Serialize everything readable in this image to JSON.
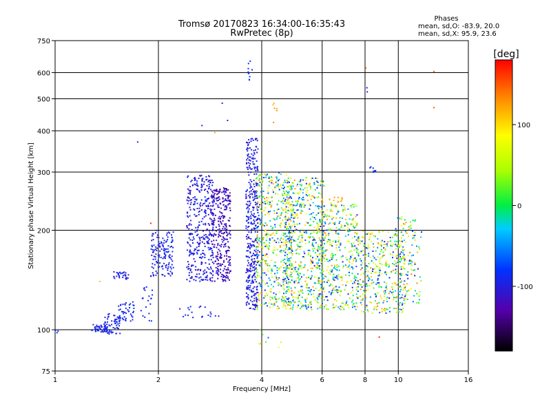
{
  "chart_data": {
    "type": "scatter",
    "title": "Tromsø 20170823 16:34:00-16:35:43",
    "subtitle": "RwPretec (8p)",
    "xlabel": "Frequency [MHz]",
    "ylabel": "Stationary phase Virtual Height [km]",
    "x_scale": "log",
    "y_scale": "log",
    "xlim": [
      1,
      16
    ],
    "ylim": [
      75,
      750
    ],
    "x_ticks": [
      1,
      2,
      4,
      6,
      8,
      10,
      16
    ],
    "x_tick_labels": [
      "1",
      "2",
      "4",
      "6",
      "8",
      "10",
      "16"
    ],
    "y_ticks": [
      75,
      100,
      200,
      300,
      400,
      500,
      600,
      750
    ],
    "y_tick_labels": [
      "75",
      "100",
      "200",
      "300",
      "400",
      "500",
      "600",
      "750"
    ],
    "grid": true,
    "phase_box": {
      "title": "Phases",
      "line_o": "mean, sd,O: -83.9, 20.0",
      "line_x": "mean, sd,X:  95.9, 23.6"
    },
    "colorbar": {
      "label": "[deg]",
      "range": [
        -180,
        180
      ],
      "ticks": [
        100,
        0,
        -100
      ],
      "tick_labels": [
        "100",
        "0",
        "-100"
      ]
    },
    "point_clusters": [
      {
        "name": "c1",
        "f": [
          1.0,
          1.02
        ],
        "h": [
          97,
          100
        ],
        "phase": [
          -100,
          -80
        ],
        "n": 3
      },
      {
        "name": "c2",
        "f": [
          1.28,
          1.42
        ],
        "h": [
          98,
          104
        ],
        "phase": [
          -110,
          -80
        ],
        "n": 45
      },
      {
        "name": "c3",
        "f": [
          1.38,
          1.55
        ],
        "h": [
          97,
          112
        ],
        "phase": [
          -110,
          -80
        ],
        "n": 60
      },
      {
        "name": "c4",
        "f": [
          1.53,
          1.7
        ],
        "h": [
          106,
          122
        ],
        "phase": [
          -100,
          -80
        ],
        "n": 45
      },
      {
        "name": "c5",
        "f": [
          1.48,
          1.64
        ],
        "h": [
          142,
          150
        ],
        "phase": [
          -110,
          -85
        ],
        "n": 30
      },
      {
        "name": "c6",
        "f": [
          1.78,
          1.92
        ],
        "h": [
          106,
          135
        ],
        "phase": [
          -100,
          -80
        ],
        "n": 20
      },
      {
        "name": "c7",
        "f": [
          1.9,
          2.22
        ],
        "h": [
          145,
          200
        ],
        "phase": [
          -110,
          -80
        ],
        "n": 140
      },
      {
        "name": "c8",
        "f": [
          2.42,
          2.9
        ],
        "h": [
          140,
          295
        ],
        "phase": [
          -120,
          -80
        ],
        "n": 360
      },
      {
        "name": "c9",
        "f": [
          2.85,
          3.25
        ],
        "h": [
          140,
          270
        ],
        "phase": [
          -140,
          -95
        ],
        "n": 320
      },
      {
        "name": "c10",
        "f": [
          2.3,
          3.0
        ],
        "h": [
          108,
          118
        ],
        "phase": [
          -110,
          -80
        ],
        "n": 20
      },
      {
        "name": "c11",
        "f": [
          3.6,
          3.9
        ],
        "h": [
          115,
          380
        ],
        "phase": [
          -120,
          -80
        ],
        "n": 380
      },
      {
        "name": "c12",
        "f": [
          3.85,
          4.9
        ],
        "h": [
          115,
          300
        ],
        "phase": [
          -110,
          140
        ],
        "n": 500
      },
      {
        "name": "c13",
        "f": [
          4.6,
          6.1
        ],
        "h": [
          115,
          290
        ],
        "phase": [
          -110,
          130
        ],
        "n": 600
      },
      {
        "name": "c14",
        "f": [
          5.8,
          7.6
        ],
        "h": [
          115,
          240
        ],
        "phase": [
          -100,
          130
        ],
        "n": 420
      },
      {
        "name": "c15",
        "f": [
          7.6,
          10.5
        ],
        "h": [
          112,
          200
        ],
        "phase": [
          -110,
          140
        ],
        "n": 360
      },
      {
        "name": "c16",
        "f": [
          9.8,
          11.7
        ],
        "h": [
          120,
          220
        ],
        "phase": [
          -110,
          140
        ],
        "n": 140
      },
      {
        "name": "c17",
        "f": [
          8.2,
          8.6
        ],
        "h": [
          300,
          315
        ],
        "phase": [
          -100,
          -80
        ],
        "n": 8
      },
      {
        "name": "c18",
        "f": [
          6.3,
          6.9
        ],
        "h": [
          235,
          252
        ],
        "phase": [
          100,
          130
        ],
        "n": 15
      },
      {
        "name": "c19",
        "f": [
          3.65,
          3.75
        ],
        "h": [
          570,
          650
        ],
        "phase": [
          -100,
          -80
        ],
        "n": 10
      },
      {
        "name": "c20",
        "f": [
          4.3,
          4.45
        ],
        "h": [
          420,
          540
        ],
        "phase": [
          100,
          140
        ],
        "n": 6
      },
      {
        "name": "c21",
        "f": [
          3.8,
          4.6
        ],
        "h": [
          88,
          100
        ],
        "phase": [
          -110,
          140
        ],
        "n": 8
      }
    ],
    "extra_points": [
      {
        "f": 1.74,
        "h": 370,
        "phase": -100
      },
      {
        "f": 2.68,
        "h": 415,
        "phase": -95
      },
      {
        "f": 2.92,
        "h": 395,
        "phase": 120
      },
      {
        "f": 3.07,
        "h": 485,
        "phase": -100
      },
      {
        "f": 3.18,
        "h": 430,
        "phase": -95
      },
      {
        "f": 8.1,
        "h": 540,
        "phase": -100
      },
      {
        "f": 8.12,
        "h": 525,
        "phase": -95
      },
      {
        "f": 8.05,
        "h": 620,
        "phase": 140
      },
      {
        "f": 12.7,
        "h": 605,
        "phase": 150
      },
      {
        "f": 12.7,
        "h": 470,
        "phase": 150
      },
      {
        "f": 1.9,
        "h": 210,
        "phase": 170
      },
      {
        "f": 1.35,
        "h": 140,
        "phase": 110
      },
      {
        "f": 8.8,
        "h": 95,
        "phase": 170
      }
    ]
  }
}
